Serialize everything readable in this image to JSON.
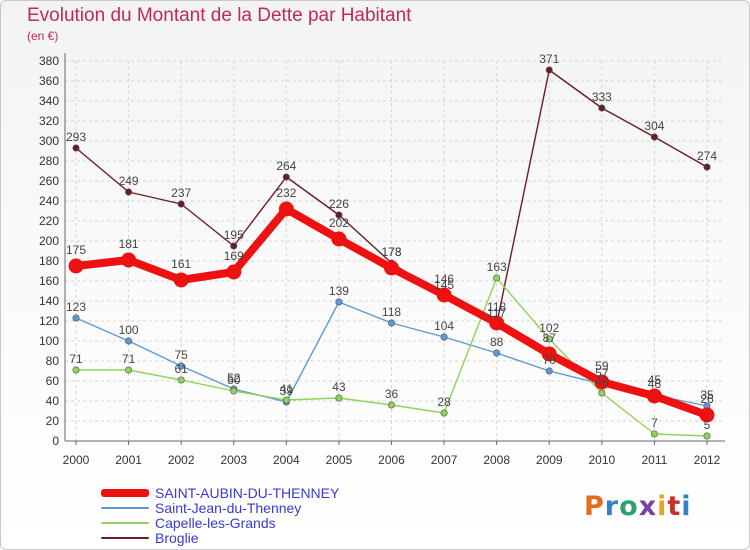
{
  "title": "Evolution du Montant de la Dette par Habitant",
  "unit": "(en €)",
  "logo": {
    "text": "Proxiti",
    "colors": [
      "#e26b1c",
      "#2f83c6",
      "#2ea26b",
      "#7a3fa0",
      "#e2a81c",
      "#c9302c",
      "#2f83c6"
    ]
  },
  "chart_data": {
    "type": "line",
    "x": [
      "2000",
      "2001",
      "2002",
      "2003",
      "2004",
      "2005",
      "2006",
      "2007",
      "2008",
      "2009",
      "2010",
      "2011",
      "2012"
    ],
    "ylim": [
      0,
      380
    ],
    "yticks": [
      0,
      20,
      40,
      60,
      80,
      100,
      120,
      140,
      160,
      180,
      200,
      220,
      240,
      260,
      280,
      300,
      320,
      340,
      360,
      380
    ],
    "grid": true,
    "legend_position": "bottom-left",
    "series": [
      {
        "name": "SAINT-AUBIN-DU-THENNEY",
        "color": "#ee1111",
        "values": [
          175,
          181,
          161,
          169,
          232,
          202,
          173,
          146,
          118,
          87,
          59,
          45,
          26
        ]
      },
      {
        "name": "Saint-Jean-du-Thenney",
        "color": "#5b9bd5",
        "values": [
          123,
          100,
          75,
          52,
          39,
          139,
          118,
          104,
          88,
          70,
          57,
          46,
          35
        ]
      },
      {
        "name": "Capelle-les-Grands",
        "color": "#8fd45a",
        "values": [
          71,
          71,
          61,
          50,
          41,
          43,
          36,
          28,
          163,
          102,
          48,
          7,
          5
        ]
      },
      {
        "name": "Broglie",
        "color": "#6b1c24",
        "values": [
          293,
          249,
          237,
          195,
          264,
          226,
          178,
          145,
          117,
          371,
          333,
          304,
          274
        ]
      }
    ]
  }
}
